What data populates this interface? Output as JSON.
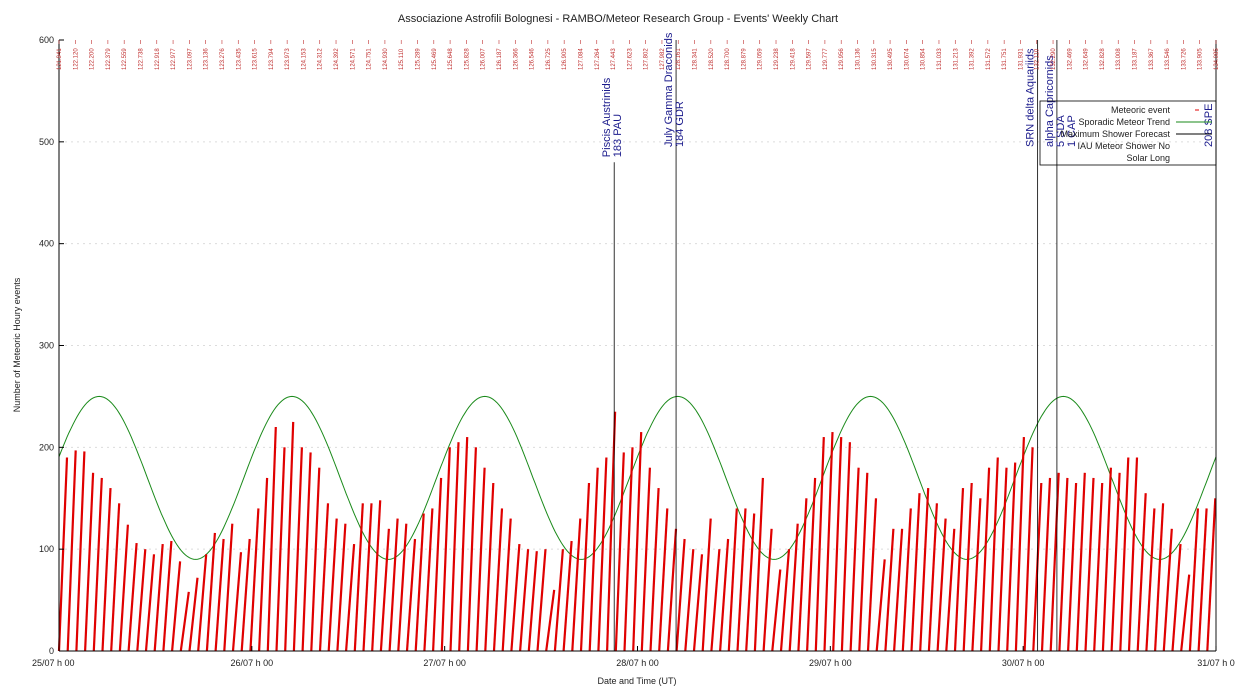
{
  "chart_data": {
    "type": "line",
    "title": "Associazione Astrofili Bolognesi - RAMBO/Meteor Research Group - Events' Weekly Chart",
    "xlabel": "Date and Time (UT)",
    "ylabel": "Number of Meteoric Houry events",
    "ylim": [
      0,
      600
    ],
    "xlim_hours": [
      0,
      144
    ],
    "y_ticks": [
      0,
      100,
      200,
      300,
      400,
      500,
      600
    ],
    "x_ticks": [
      {
        "hour": 0,
        "label": "25/07 h 00"
      },
      {
        "hour": 24,
        "label": "26/07 h 00"
      },
      {
        "hour": 48,
        "label": "27/07 h 00"
      },
      {
        "hour": 72,
        "label": "28/07 h 00"
      },
      {
        "hour": 96,
        "label": "29/07 h 00"
      },
      {
        "hour": 120,
        "label": "30/07 h 00"
      },
      {
        "hour": 144,
        "label": "31/07 h 0"
      }
    ],
    "solar_longitude_labels": [
      "121.941",
      "122.120",
      "122.200",
      "122.379",
      "122.559",
      "122.738",
      "122.918",
      "122.977",
      "123.097",
      "123.136",
      "123.276",
      "123.435",
      "123.615",
      "123.794",
      "123.973",
      "124.153",
      "124.312",
      "124.392",
      "124.571",
      "124.751",
      "124.930",
      "125.110",
      "125.289",
      "125.469",
      "125.648",
      "125.828",
      "126.007",
      "126.187",
      "126.366",
      "126.546",
      "126.725",
      "126.905",
      "127.084",
      "127.264",
      "127.443",
      "127.623",
      "127.802",
      "127.982",
      "128.161",
      "128.341",
      "128.520",
      "128.700",
      "128.879",
      "129.059",
      "129.238",
      "129.418",
      "129.597",
      "129.777",
      "129.956",
      "130.136",
      "130.315",
      "130.495",
      "130.674",
      "130.854",
      "131.033",
      "131.213",
      "131.392",
      "131.572",
      "131.751",
      "131.931",
      "132.110",
      "132.290",
      "132.469",
      "132.649",
      "132.828",
      "133.008",
      "133.187",
      "133.367",
      "133.546",
      "133.726",
      "133.905",
      "134.085"
    ],
    "legend": {
      "placement": "top-right",
      "entries": [
        {
          "label": "Meteoric event",
          "color": "#e00000"
        },
        {
          "label": "Sporadic Meteor Trend",
          "color": "#1a8a1a"
        },
        {
          "label": "Maximum Shower Forecast",
          "color": "#000000"
        },
        {
          "label": "IAU Meteor Shower No",
          "color": "#000000"
        },
        {
          "label": "Solar Long",
          "color": "#000000"
        }
      ]
    },
    "showers": [
      {
        "hour": 69.1,
        "line1": "Piscis Austrinids",
        "line2": "183 PAU",
        "y_top": 480
      },
      {
        "hour": 76.8,
        "line1": "July Gamma Draconids",
        "line2": "184 GDR",
        "y_top": 600
      },
      {
        "hour": 121.8,
        "line1": "SRN delta Aquariids",
        "line2": "",
        "y_top": 600
      },
      {
        "hour": 124.2,
        "line1": "alpha Capricornids",
        "line2": "5 SDA",
        "line3": "1 CAP",
        "y_top": 600
      },
      {
        "hour": 144,
        "line1": "",
        "line2": "208 SPE",
        "y_top": 600
      }
    ],
    "sporadic_trend": {
      "mean": 170,
      "amplitude": 80,
      "period_hours": 24,
      "peak_hour": 5.0
    },
    "series": [
      {
        "name": "Meteoric event",
        "color": "#e00000",
        "values": [
          190,
          197,
          196,
          175,
          170,
          160,
          145,
          124,
          106,
          100,
          95,
          105,
          108,
          88,
          58,
          72,
          95,
          116,
          110,
          125,
          97,
          110,
          140,
          170,
          220,
          200,
          225,
          200,
          195,
          180,
          145,
          130,
          125,
          105,
          145,
          145,
          148,
          120,
          130,
          125,
          110,
          135,
          140,
          170,
          200,
          205,
          210,
          200,
          180,
          165,
          140,
          130,
          105,
          100,
          98,
          100,
          60,
          100,
          108,
          130,
          165,
          180,
          190,
          235,
          195,
          200,
          215,
          180,
          160,
          140,
          120,
          110,
          100,
          95,
          130,
          100,
          110,
          140,
          140,
          135,
          170,
          120,
          80,
          100,
          125,
          150,
          170,
          210,
          215,
          210,
          205,
          180,
          175,
          150,
          90,
          120,
          120,
          140,
          155,
          160,
          145,
          130,
          120,
          160,
          165,
          150,
          180,
          190,
          180,
          185,
          210,
          200,
          165,
          170,
          175,
          170,
          165,
          175,
          170,
          165,
          180,
          175,
          190,
          190,
          155,
          140,
          145,
          120,
          105,
          75,
          140,
          140,
          150
        ]
      }
    ]
  }
}
